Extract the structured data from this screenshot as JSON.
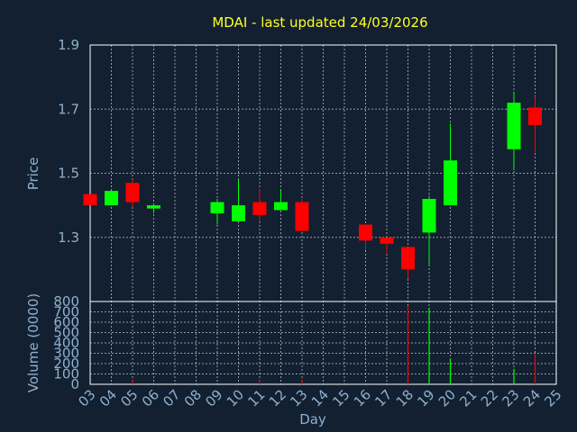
{
  "colors": {
    "background": "#122031",
    "title": "#ffff22",
    "text": "#8fb0d0",
    "up": "#00ff00",
    "down": "#ff0000",
    "grid": "#ffffff"
  },
  "chart_data": [
    {
      "type": "candlestick",
      "title": "MDAI - last updated 24/03/2026",
      "ylabel": "Price",
      "ylim": [
        1.1,
        1.9
      ],
      "yticks": [
        "1.3",
        "1.5",
        "1.7",
        "1.9"
      ],
      "grid": true,
      "candles": [
        {
          "day": "03",
          "open": 1.435,
          "high": 1.435,
          "low": 1.4,
          "close": 1.4
        },
        {
          "day": "04",
          "open": 1.4,
          "high": 1.445,
          "low": 1.4,
          "close": 1.445
        },
        {
          "day": "05",
          "open": 1.47,
          "high": 1.48,
          "low": 1.395,
          "close": 1.41
        },
        {
          "day": "06",
          "open": 1.39,
          "high": 1.4,
          "low": 1.375,
          "close": 1.4
        },
        {
          "day": "09",
          "open": 1.375,
          "high": 1.42,
          "low": 1.34,
          "close": 1.41
        },
        {
          "day": "10",
          "open": 1.35,
          "high": 1.48,
          "low": 1.35,
          "close": 1.4
        },
        {
          "day": "11",
          "open": 1.41,
          "high": 1.45,
          "low": 1.35,
          "close": 1.37
        },
        {
          "day": "12",
          "open": 1.385,
          "high": 1.45,
          "low": 1.385,
          "close": 1.41
        },
        {
          "day": "13",
          "open": 1.41,
          "high": 1.42,
          "low": 1.32,
          "close": 1.32
        },
        {
          "day": "16",
          "open": 1.34,
          "high": 1.34,
          "low": 1.26,
          "close": 1.29
        },
        {
          "day": "17",
          "open": 1.3,
          "high": 1.3,
          "low": 1.25,
          "close": 1.28
        },
        {
          "day": "18",
          "open": 1.27,
          "high": 1.27,
          "low": 1.17,
          "close": 1.2
        },
        {
          "day": "19",
          "open": 1.315,
          "high": 1.43,
          "low": 1.21,
          "close": 1.42
        },
        {
          "day": "20",
          "open": 1.4,
          "high": 1.655,
          "low": 1.4,
          "close": 1.54
        },
        {
          "day": "23",
          "open": 1.575,
          "high": 1.755,
          "low": 1.51,
          "close": 1.72
        },
        {
          "day": "24",
          "open": 1.705,
          "high": 1.74,
          "low": 1.565,
          "close": 1.65
        }
      ]
    },
    {
      "type": "bar",
      "ylabel": "Volume (0000)",
      "xlabel": "Day",
      "ylim": [
        0,
        800
      ],
      "yticks": [
        "0",
        "100",
        "200",
        "300",
        "400",
        "500",
        "600",
        "700",
        "800"
      ],
      "categories": [
        "03",
        "04",
        "05",
        "06",
        "07",
        "08",
        "09",
        "10",
        "11",
        "12",
        "13",
        "14",
        "15",
        "16",
        "17",
        "18",
        "19",
        "20",
        "21",
        "22",
        "23",
        "24",
        "25"
      ],
      "bars": [
        {
          "day": "03",
          "value": 0,
          "dir": "down"
        },
        {
          "day": "04",
          "value": 0,
          "dir": "up"
        },
        {
          "day": "05",
          "value": 40,
          "dir": "down"
        },
        {
          "day": "06",
          "value": 0,
          "dir": "up"
        },
        {
          "day": "09",
          "value": 0,
          "dir": "up"
        },
        {
          "day": "10",
          "value": 0,
          "dir": "up"
        },
        {
          "day": "11",
          "value": 40,
          "dir": "down"
        },
        {
          "day": "12",
          "value": 0,
          "dir": "up"
        },
        {
          "day": "13",
          "value": 40,
          "dir": "down"
        },
        {
          "day": "16",
          "value": 0,
          "dir": "down"
        },
        {
          "day": "17",
          "value": 0,
          "dir": "down"
        },
        {
          "day": "18",
          "value": 760,
          "dir": "down"
        },
        {
          "day": "19",
          "value": 740,
          "dir": "up"
        },
        {
          "day": "20",
          "value": 240,
          "dir": "up"
        },
        {
          "day": "23",
          "value": 150,
          "dir": "up"
        },
        {
          "day": "24",
          "value": 290,
          "dir": "down"
        }
      ]
    }
  ]
}
